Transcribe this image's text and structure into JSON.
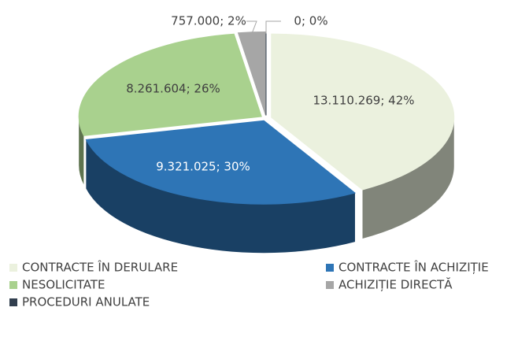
{
  "chart_data": {
    "type": "pie",
    "categories": [
      "CONTRACTE ÎN DERULARE",
      "CONTRACTE ÎN ACHIZIȚIE",
      "NESOLICITATE",
      "ACHIZIȚIE DIRECTĂ",
      "PROCEDURI ANULATE"
    ],
    "values": [
      13110269,
      9321025,
      8261604,
      757000,
      0
    ],
    "value_labels": [
      "13.110.269; 42%",
      "9.321.025; 30%",
      "8.261.604; 26%",
      "757.000; 2%",
      "0; 0%"
    ],
    "colors": [
      "#ebf1de",
      "#2e75b6",
      "#a9d18e",
      "#a6a6a6",
      "#323f4f"
    ]
  }
}
